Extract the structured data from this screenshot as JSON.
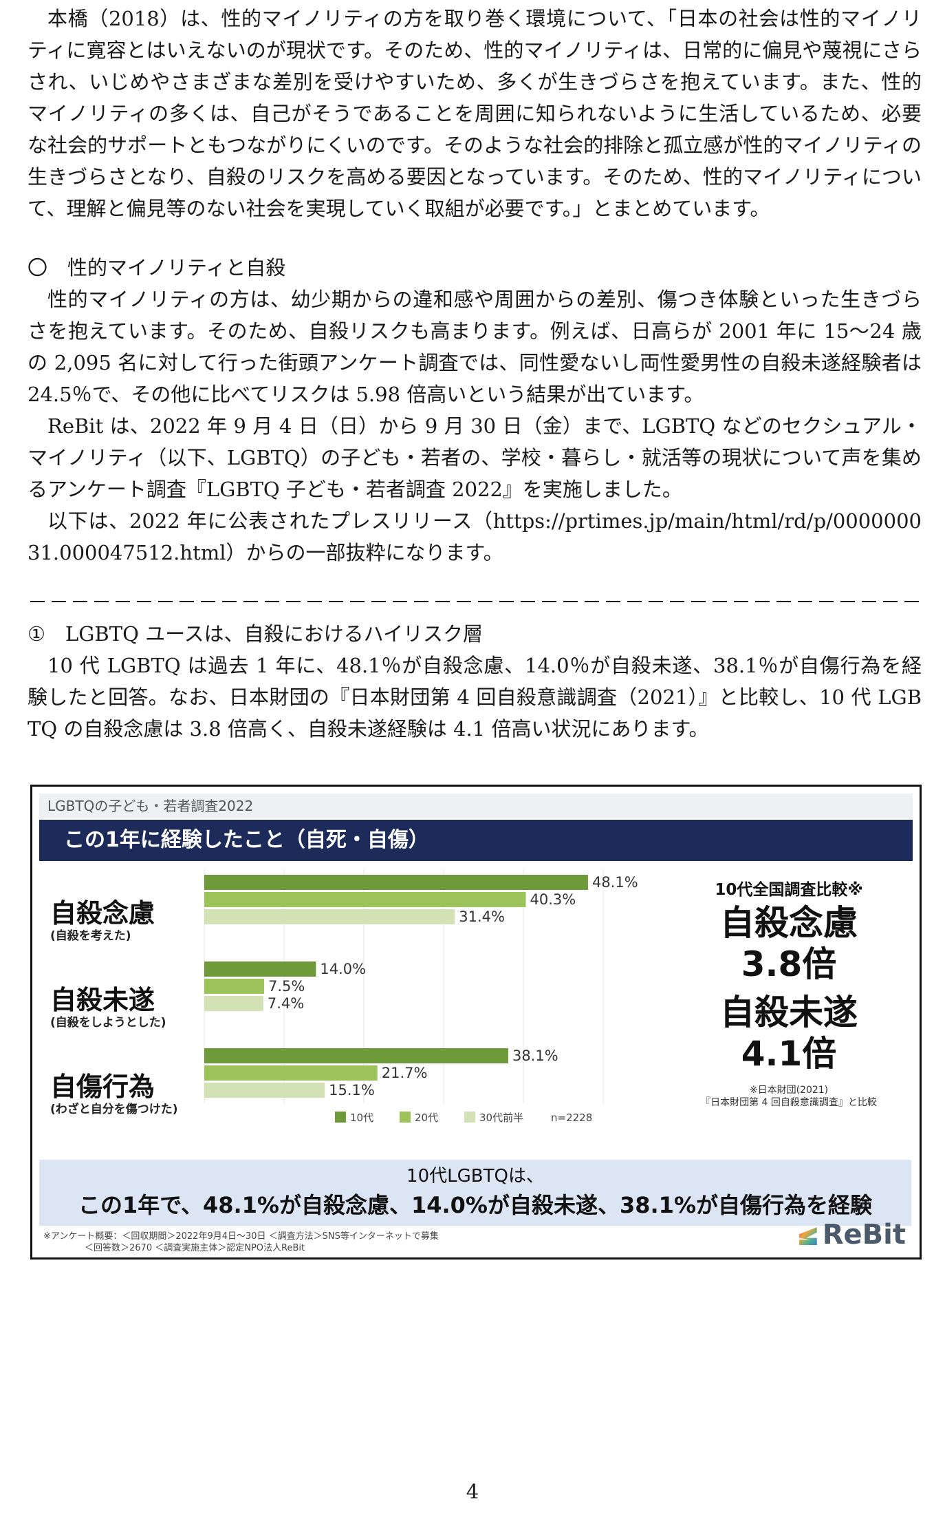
{
  "doc": {
    "para1": "本橋（2018）は、性的マイノリティの方を取り巻く環境について、「日本の社会は性的マイノリティに寛容とはいえないのが現状です。そのため、性的マイノリティは、日常的に偏見や蔑視にさらされ、いじめやさまざまな差別を受けやすいため、多くが生きづらさを抱えています。また、性的マイノリティの多くは、自己がそうであることを周囲に知られないように生活しているため、必要な社会的サポートともつながりにくいのです。そのような社会的排除と孤立感が性的マイノリティの生きづらさとなり、自殺のリスクを高める要因となっています。そのため、性的マイノリティについて、理解と偏見等のない社会を実現していく取組が必要です。」とまとめています。",
    "heading": "〇　性的マイノリティと自殺",
    "para2a": "性的マイノリティの方は、幼少期からの違和感や周囲からの差別、傷つき体験といった生きづらさを抱えています。そのため、自殺リスクも高まります。例えば、日高らが 2001 年に 15～24 歳の 2,095 名に対して行った街頭アンケート調査では、同性愛ないし両性愛男性の自殺未遂経験者は 24.5％で、その他に比べてリスクは 5.98 倍高いという結果が出ています。",
    "para2b": "ReBit は、2022 年 9 月 4 日（日）から 9 月 30 日（金）まで、LGBTQ などのセクシュアル・マイノリティ（以下、LGBTQ）の子ども・若者の、学校・暮らし・就活等の現状について声を集めるアンケート調査『LGBTQ 子ども・若者調査 2022』を実施しました。",
    "para2c": "以下は、2022 年に公表されたプレスリリース（https://prtimes.jp/main/html/rd/p/000000031.000047512.html）からの一部抜粋になります。",
    "dashes": "－－－－－－－－－－－－－－－－－－－－－－－－－－－－－－－－－－－－－－－－－－－－",
    "section": "①　LGBTQ ユースは、自殺におけるハイリスク層",
    "para3": "10 代 LGBTQ は過去 1 年に、48.1％が自殺念慮、14.0％が自殺未遂、38.1％が自傷行為を経験したと回答。なお、日本財団の『日本財団第 4 回自殺意識調査（2021）』と比較し、10 代 LGBTQ の自殺念慮は 3.8 倍高く、自殺未遂経験は 4.1 倍高い状況にあります。",
    "page_number": "4"
  },
  "figure": {
    "subtitle": "LGBTQの子ども・若者調査2022",
    "title": "この1年に経験したこと（自死・自傷）",
    "categories": [
      {
        "main": "自殺念慮",
        "sub": "(自殺を考えた)"
      },
      {
        "main": "自殺未遂",
        "sub": "(自殺をしようとした)"
      },
      {
        "main": "自傷行為",
        "sub": "(わざと自分を傷つけた)"
      }
    ],
    "compare_title": "10代全国調査比較※",
    "compare_1_label": "自殺念慮",
    "compare_1_value": "3.8倍",
    "compare_2_label": "自殺未遂",
    "compare_2_value": "4.1倍",
    "compare_note_1": "※日本財団(2021)",
    "compare_note_2": "『日本財団第 4 回自殺意識調査』と比較",
    "summary_1": "10代LGBTQは、",
    "summary_2": "この1年で、48.1%が自殺念慮、14.0%が自殺未遂、38.1%が自傷行為を経験",
    "survey_1": "※アンケート概要：＜回収期間＞2022年9月4日〜30日 ＜調査方法＞SNS等インターネットで募集",
    "survey_2": "＜回答数＞2670 ＜調査実施主体＞認定NPO法人ReBit",
    "logo": "ReBit"
  },
  "chart_data": {
    "type": "bar",
    "orientation": "horizontal",
    "categories": [
      "自殺念慮",
      "自殺未遂",
      "自傷行為"
    ],
    "series": [
      {
        "name": "10代",
        "values": [
          48.1,
          14.0,
          38.1
        ],
        "color": "#6f9a3a"
      },
      {
        "name": "20代",
        "values": [
          40.3,
          7.5,
          21.7
        ],
        "color": "#9cc45a"
      },
      {
        "name": "30代前半",
        "values": [
          31.4,
          7.4,
          15.1
        ],
        "color": "#d3e2b5"
      }
    ],
    "value_labels": [
      [
        "48.1%",
        "40.3%",
        "31.4%"
      ],
      [
        "14.0%",
        "7.5%",
        "7.4%"
      ],
      [
        "38.1%",
        "21.7%",
        "15.1%"
      ]
    ],
    "note": "n=2228",
    "legend_position": "bottom",
    "xlim": [
      0,
      50
    ]
  }
}
